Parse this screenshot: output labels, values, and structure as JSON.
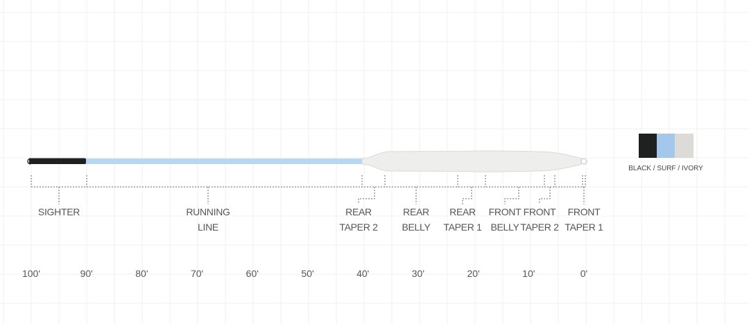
{
  "legend": {
    "label": "BLACK / SURF / IVORY",
    "colors": [
      "#1f2120",
      "#a3c8ec",
      "#dcdbd8"
    ]
  },
  "line_colors": {
    "sighter": "#1f2120",
    "running_line": "#b9d6f2",
    "head": "#eeeeec"
  },
  "sections": [
    {
      "id": "sighter",
      "lines": [
        "SIGHTER"
      ]
    },
    {
      "id": "running-line",
      "lines": [
        "RUNNING",
        "LINE"
      ]
    },
    {
      "id": "rear-taper-2",
      "lines": [
        "REAR",
        "TAPER 2"
      ]
    },
    {
      "id": "rear-belly",
      "lines": [
        "REAR",
        "BELLY"
      ]
    },
    {
      "id": "rear-taper-1",
      "lines": [
        "REAR",
        "TAPER 1"
      ]
    },
    {
      "id": "front-belly",
      "lines": [
        "FRONT",
        "BELLY"
      ]
    },
    {
      "id": "front-taper-2",
      "lines": [
        "FRONT",
        "TAPER 2"
      ]
    },
    {
      "id": "front-taper-1",
      "lines": [
        "FRONT",
        "TAPER 1"
      ]
    }
  ],
  "scale_ticks": [
    "100'",
    "90'",
    "80'",
    "70'",
    "60'",
    "50'",
    "40'",
    "30'",
    "20'",
    "10'",
    "0'"
  ]
}
